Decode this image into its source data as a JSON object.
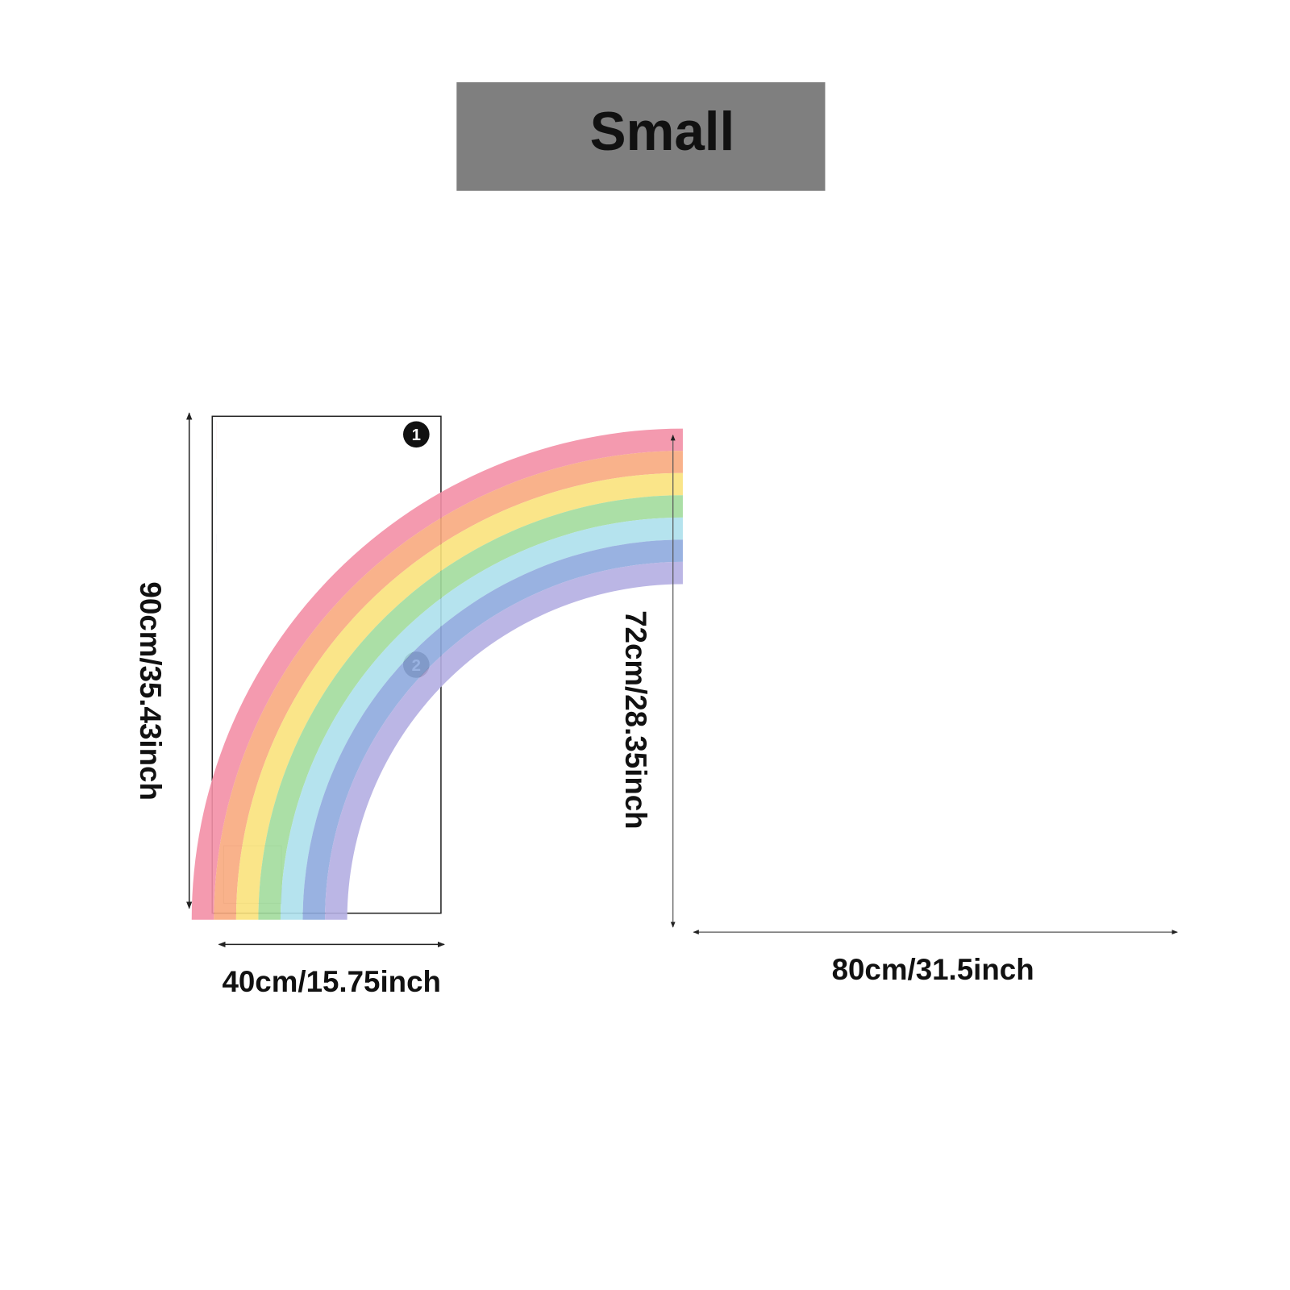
{
  "title": "Small",
  "left_panel": {
    "piece_labels": [
      "1",
      "2"
    ],
    "height_label": "90cm/35.43inch",
    "width_label": "40cm/15.75inch"
  },
  "right_panel": {
    "height_label": "72cm/28.35inch",
    "width_label": "80cm/31.5inch"
  }
}
